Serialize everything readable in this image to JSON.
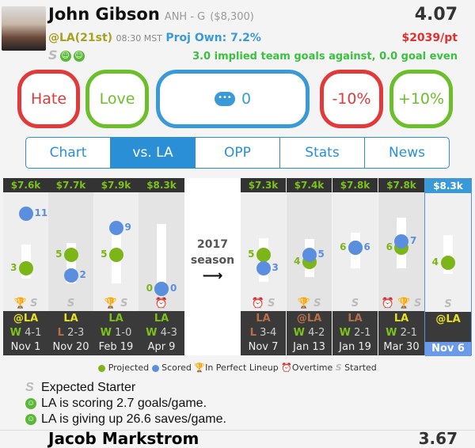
{
  "player": {
    "name": "John Gibson",
    "team_pos": "ANH - G",
    "salary": "($8,300)",
    "points": "4.07",
    "opponent": "@LA(21st)",
    "time": "08:30 MST",
    "proj_own": "Proj Own: 7.2%",
    "price_per_pt": "$2039/pt",
    "implied": "3.0 implied team goals against, 0.0 goal even",
    "badge": "S"
  },
  "actions": {
    "hate": "Hate",
    "love": "Love",
    "comments": "0",
    "minus": "-10%",
    "plus": "+10%"
  },
  "tabs": [
    "Chart",
    "vs. LA",
    "OPP",
    "Stats",
    "News"
  ],
  "active_tab": "vs. LA",
  "colors": {
    "projected": "#7cb518",
    "scored": "#5a8fe0",
    "accent": "#2b8fd6",
    "hate": "#e03a3a",
    "love": "#6cbf2a"
  },
  "season": {
    "year": "2017",
    "label": "season",
    "arrow": "⟶"
  },
  "games": [
    {
      "price": "$7.6k",
      "projected": 3,
      "scored": 11,
      "range": [
        1.5,
        6.5
      ],
      "icons": [
        "trophy",
        "S"
      ],
      "team": "@LA",
      "team_color": "#e8e020",
      "result": "W",
      "score": "4-1",
      "date": "Nov 1"
    },
    {
      "price": "$7.7k",
      "projected": 5,
      "scored": 2,
      "range": [
        0.8,
        6.8
      ],
      "icons": [
        "S"
      ],
      "team": "LA",
      "team_color": "#e8e020",
      "result": "L",
      "score": "2-3",
      "date": "Nov 20"
    },
    {
      "price": "$7.9k",
      "projected": 5,
      "scored": 9,
      "range": [
        0.8,
        8.8
      ],
      "icons": [
        "trophy",
        "S"
      ],
      "team": "LA",
      "team_color": "#7cc21c",
      "result": "W",
      "score": "1-0",
      "date": "Feb 19"
    },
    {
      "price": "$8.3k",
      "projected": 0,
      "scored": 0,
      "range": [
        0.5,
        9.5
      ],
      "icons": [
        "clock"
      ],
      "team": "LA",
      "team_color": "#7cc21c",
      "result": "W",
      "score": "4-3",
      "date": "Apr 9"
    },
    {
      "price": "$7.3k",
      "projected": 5,
      "scored": 3,
      "range": [
        1,
        7.5
      ],
      "icons": [
        "clock",
        "S"
      ],
      "team": "LA",
      "team_color": "#b8704a",
      "result": "L",
      "score": "3-4",
      "date": "Nov 7"
    },
    {
      "price": "$7.4k",
      "projected": 4,
      "scored": 5,
      "range": [
        1.8,
        7.3
      ],
      "icons": [
        "trophy",
        "S"
      ],
      "team": "@LA",
      "team_color": "#b8704a",
      "result": "W",
      "score": "4-2",
      "date": "Jan 13"
    },
    {
      "price": "$7.8k",
      "projected": 6,
      "scored": 6,
      "range": [
        3,
        8.2
      ],
      "icons": [
        "S"
      ],
      "team": "LA",
      "team_color": "#b8704a",
      "result": "W",
      "score": "2-1",
      "date": "Jan 19"
    },
    {
      "price": "$7.8k",
      "projected": 6,
      "scored": 7,
      "range": [
        3,
        10.5
      ],
      "icons": [
        "clock",
        "trophy",
        "S"
      ],
      "team": "LA",
      "team_color": "#e8e020",
      "result": "W",
      "score": "2-1",
      "date": "Mar 30"
    }
  ],
  "upcoming": {
    "price": "$8.3k",
    "projected": 4,
    "range": [
      2.3,
      8
    ],
    "icons": [
      "S"
    ],
    "team": "@LA",
    "date": "Nov 6"
  },
  "legend": {
    "projected": "Projected",
    "scored": "Scored",
    "perfect": "In Perfect Lineup",
    "overtime": "Overtime",
    "started": "Started"
  },
  "notes": [
    {
      "icon": "S",
      "text": "Expected Starter"
    },
    {
      "icon": "smile",
      "text": "LA is scoring 2.7 goals/game."
    },
    {
      "icon": "smile",
      "text": "LA is giving up 26.6 saves/game."
    }
  ],
  "next_player": {
    "name": "Jacob Markstrom",
    "points": "3.67"
  }
}
